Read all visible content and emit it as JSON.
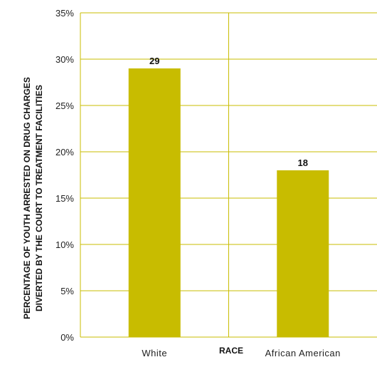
{
  "chart_data": {
    "type": "bar",
    "categories": [
      "White",
      "African American"
    ],
    "values": [
      29,
      18
    ],
    "data_labels": [
      "29",
      "18"
    ],
    "xlabel": "RACE",
    "ylabel_lines": [
      "PERCENTAGE OF YOUTH ARRESTED ON DRUG CHARGES",
      "DIVERTED BY THE COURT TO TREATMENT FACILITIES"
    ],
    "ylim": [
      0,
      35
    ],
    "yticks": [
      0,
      5,
      10,
      15,
      20,
      25,
      30,
      35
    ],
    "ytick_labels": [
      "0%",
      "5%",
      "10%",
      "15%",
      "20%",
      "25%",
      "30%",
      "35%"
    ],
    "grid": true,
    "colors": {
      "bar": "#c8bc00",
      "grid": "#c8bc00",
      "axis": "#c8bc00"
    }
  }
}
